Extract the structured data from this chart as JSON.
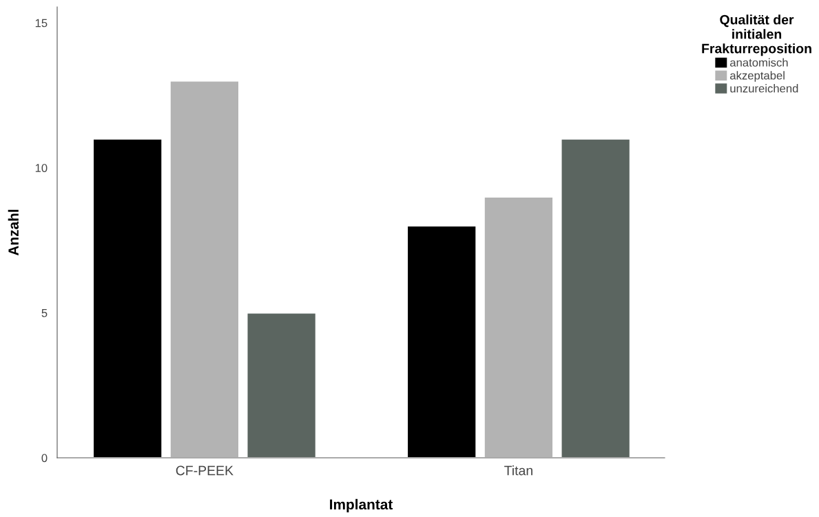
{
  "chart_data": {
    "type": "bar",
    "xlabel": "Implantat",
    "ylabel": "Anzahl",
    "legend_title": "Qualität der\ninitialen\nFrakturreposition",
    "categories": [
      "CF-PEEK",
      "Titan"
    ],
    "series": [
      {
        "name": "anatomisch",
        "color": "#000000",
        "values": [
          11,
          8
        ]
      },
      {
        "name": "akzeptabel",
        "color": "#b3b3b3",
        "values": [
          13,
          9
        ]
      },
      {
        "name": "unzureichend",
        "color": "#5b6560",
        "values": [
          5,
          11
        ]
      }
    ],
    "ylim": [
      0,
      15.55
    ],
    "yticks": [
      0,
      5,
      10,
      15
    ],
    "grid": false,
    "legend": "top right"
  }
}
